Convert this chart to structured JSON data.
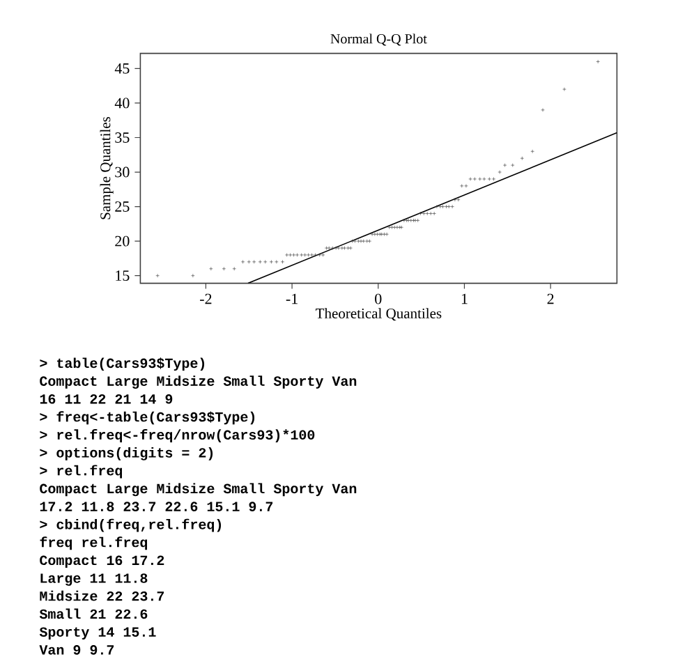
{
  "chart_data": {
    "type": "scatter",
    "title": "Normal Q-Q Plot",
    "xlabel": "Theoretical Quantiles",
    "ylabel": "Sample Quantiles",
    "xlim": [
      -2.76,
      2.77
    ],
    "ylim": [
      13.9,
      47.2
    ],
    "xticks": [
      -2,
      -1,
      0,
      1,
      2
    ],
    "yticks": [
      15,
      20,
      25,
      30,
      35,
      40,
      45
    ],
    "series": [
      {
        "marker": "cross",
        "color": "#333333",
        "x": [
          -2.56,
          -2.15,
          -1.94,
          -1.79,
          -1.67,
          -1.57,
          -1.5,
          -1.44,
          -1.37,
          -1.31,
          -1.24,
          -1.18,
          -1.11,
          -1.06,
          -1.02,
          -0.98,
          -0.94,
          -0.89,
          -0.85,
          -0.81,
          -0.77,
          -0.73,
          -0.68,
          -0.64,
          -0.6,
          -0.57,
          -0.53,
          -0.49,
          -0.46,
          -0.42,
          -0.39,
          -0.35,
          -0.32,
          -0.3,
          -0.27,
          -0.23,
          -0.2,
          -0.17,
          -0.13,
          -0.1,
          -0.07,
          -0.04,
          -0.01,
          0.02,
          0.04,
          0.07,
          0.1,
          0.13,
          0.16,
          0.19,
          0.22,
          0.25,
          0.27,
          0.3,
          0.33,
          0.35,
          0.38,
          0.41,
          0.43,
          0.46,
          0.49,
          0.53,
          0.57,
          0.61,
          0.65,
          0.68,
          0.72,
          0.75,
          0.79,
          0.82,
          0.86,
          0.89,
          0.93,
          0.97,
          1.02,
          1.07,
          1.12,
          1.18,
          1.23,
          1.29,
          1.34,
          1.41,
          1.47,
          1.56,
          1.67,
          1.79,
          1.91,
          2.16,
          2.55
        ],
        "values": [
          15,
          15,
          16,
          16,
          16,
          17,
          17,
          17,
          17,
          17,
          17,
          17,
          17,
          18,
          18,
          18,
          18,
          18,
          18,
          18,
          18,
          18,
          18,
          18,
          19,
          19,
          19,
          19,
          19,
          19,
          19,
          19,
          19,
          20,
          20,
          20,
          20,
          20,
          20,
          20,
          21,
          21,
          21,
          21,
          21,
          21,
          21,
          22,
          22,
          22,
          22,
          22,
          22,
          23,
          23,
          23,
          23,
          23,
          23,
          23,
          24,
          24,
          24,
          24,
          24,
          25,
          25,
          25,
          25,
          25,
          25,
          26,
          26,
          28,
          28,
          29,
          29,
          29,
          29,
          29,
          29,
          30,
          31,
          31,
          32,
          33,
          39,
          42,
          46
        ]
      },
      {
        "type": "line",
        "marker": "none",
        "color": "#000000",
        "x": [
          -1.51,
          2.77
        ],
        "values": [
          13.9,
          35.7
        ]
      }
    ],
    "annotations": [
      "> table(Cars93$Type)",
      "Compact Large Midsize Small Sporty Van",
      "16 11 22 21 14 9",
      "> freq<-table(Cars93$Type)",
      "> rel.freq<-freq/nrow(Cars93)*100",
      "> options(digits = 2)",
      "> rel.freq",
      "Compact Large Midsize Small Sporty Van",
      "17.2 11.8 23.7 22.6 15.1 9.7",
      "> cbind(freq,rel.freq)",
      "freq rel.freq",
      "Compact 16 17.2",
      "Large 11 11.8",
      "Midsize 22 23.7",
      "Small 21 22.6",
      "Sporty 14 15.1",
      "Van 9 9.7"
    ]
  }
}
